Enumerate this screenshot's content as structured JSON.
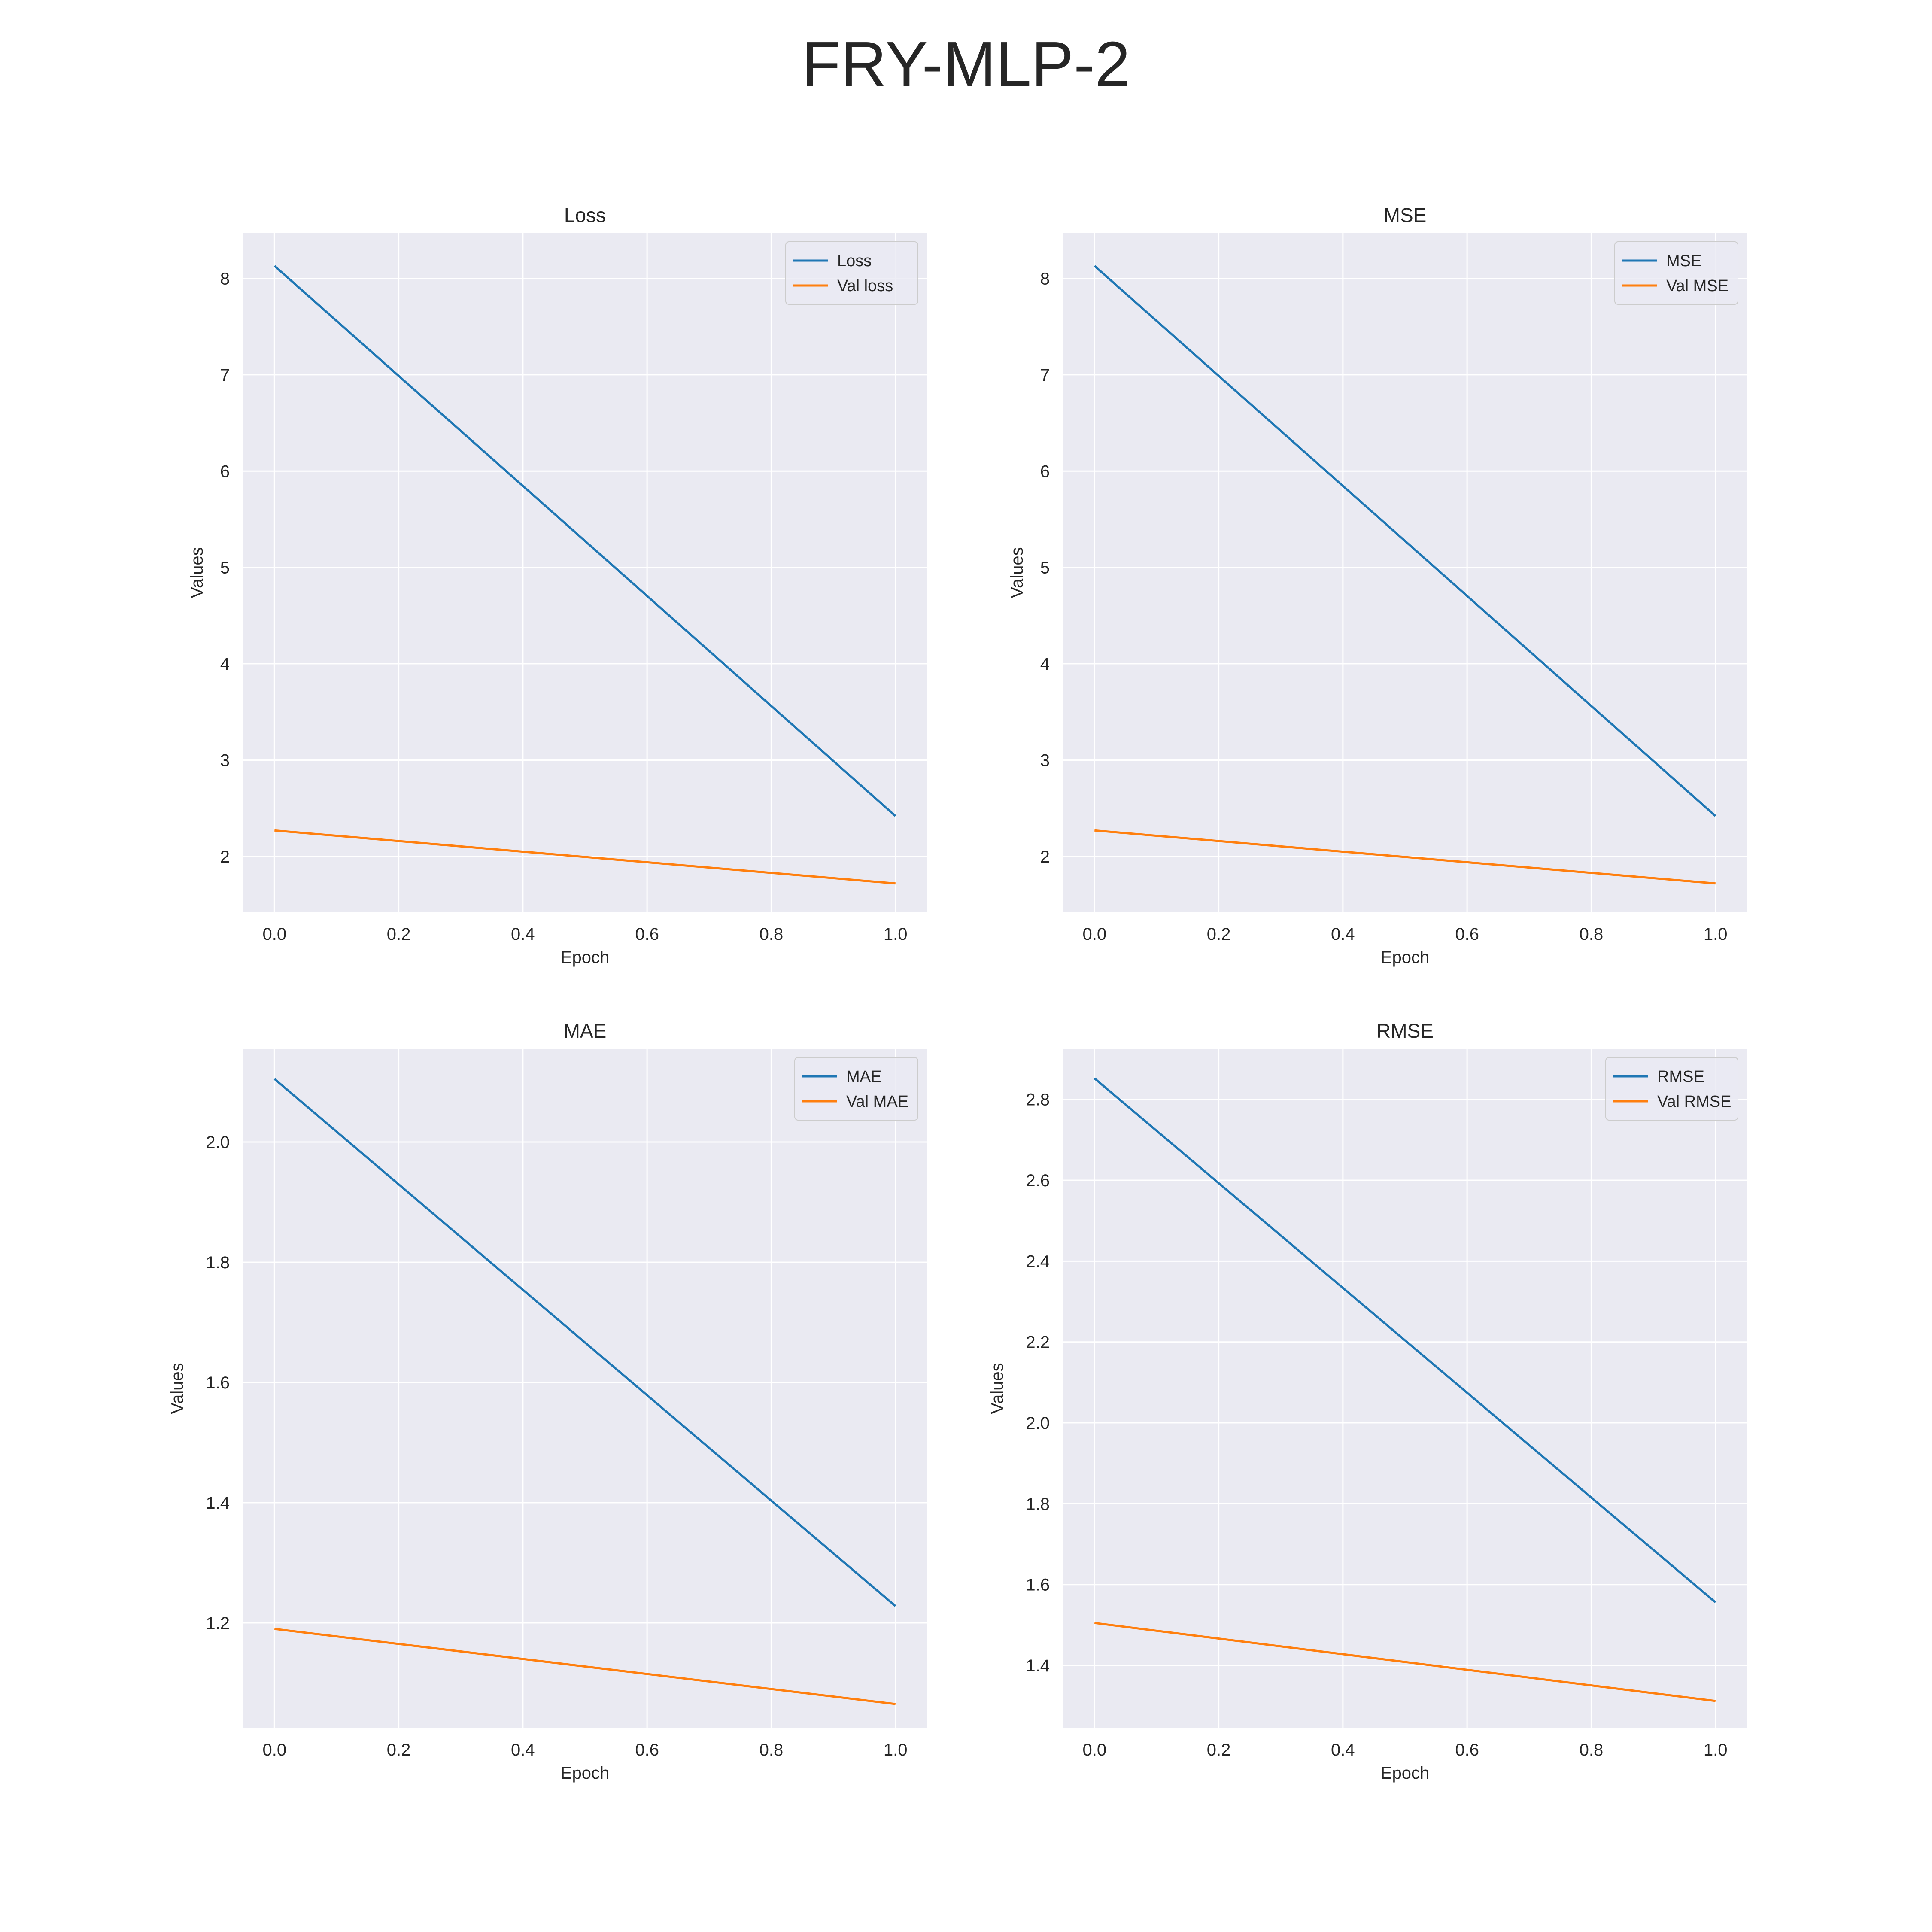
{
  "figure": {
    "title": "FRY-MLP-2"
  },
  "style": {
    "axes_facecolor": "#eaeaf2",
    "grid_color": "#ffffff",
    "series_colors": [
      "#1f77b4",
      "#ff7f0e"
    ]
  },
  "chart_data": [
    {
      "type": "line",
      "title": "Loss",
      "xlabel": "Epoch",
      "ylabel": "Values",
      "x": [
        0,
        1
      ],
      "xlim": [
        -0.05,
        1.05
      ],
      "ylim": [
        1.42,
        8.47
      ],
      "xticks": [
        0.0,
        0.2,
        0.4,
        0.6,
        0.8,
        1.0
      ],
      "xtick_labels": [
        "0.0",
        "0.2",
        "0.4",
        "0.6",
        "0.8",
        "1.0"
      ],
      "yticks": [
        2,
        3,
        4,
        5,
        6,
        7,
        8
      ],
      "ytick_labels": [
        "2",
        "3",
        "4",
        "5",
        "6",
        "7",
        "8"
      ],
      "grid": true,
      "legend_position": "top-right",
      "series": [
        {
          "name": "Loss",
          "values": [
            8.13,
            2.42
          ]
        },
        {
          "name": "Val loss",
          "values": [
            2.27,
            1.72
          ]
        }
      ]
    },
    {
      "type": "line",
      "title": "MSE",
      "xlabel": "Epoch",
      "ylabel": "Values",
      "x": [
        0,
        1
      ],
      "xlim": [
        -0.05,
        1.05
      ],
      "ylim": [
        1.42,
        8.47
      ],
      "xticks": [
        0.0,
        0.2,
        0.4,
        0.6,
        0.8,
        1.0
      ],
      "xtick_labels": [
        "0.0",
        "0.2",
        "0.4",
        "0.6",
        "0.8",
        "1.0"
      ],
      "yticks": [
        2,
        3,
        4,
        5,
        6,
        7,
        8
      ],
      "ytick_labels": [
        "2",
        "3",
        "4",
        "5",
        "6",
        "7",
        "8"
      ],
      "grid": true,
      "legend_position": "top-right",
      "series": [
        {
          "name": "MSE",
          "values": [
            8.13,
            2.42
          ]
        },
        {
          "name": "Val MSE",
          "values": [
            2.27,
            1.72
          ]
        }
      ]
    },
    {
      "type": "line",
      "title": "MAE",
      "xlabel": "Epoch",
      "ylabel": "Values",
      "x": [
        0,
        1
      ],
      "xlim": [
        -0.05,
        1.05
      ],
      "ylim": [
        1.025,
        2.155
      ],
      "xticks": [
        0.0,
        0.2,
        0.4,
        0.6,
        0.8,
        1.0
      ],
      "xtick_labels": [
        "0.0",
        "0.2",
        "0.4",
        "0.6",
        "0.8",
        "1.0"
      ],
      "yticks": [
        1.2,
        1.4,
        1.6,
        1.8,
        2.0
      ],
      "ytick_labels": [
        "1.2",
        "1.4",
        "1.6",
        "1.8",
        "2.0"
      ],
      "grid": true,
      "legend_position": "top-right",
      "series": [
        {
          "name": "MAE",
          "values": [
            2.105,
            1.228
          ]
        },
        {
          "name": "Val MAE",
          "values": [
            1.19,
            1.065
          ]
        }
      ]
    },
    {
      "type": "line",
      "title": "RMSE",
      "xlabel": "Epoch",
      "ylabel": "Values",
      "x": [
        0,
        1
      ],
      "xlim": [
        -0.05,
        1.05
      ],
      "ylim": [
        1.245,
        2.925
      ],
      "xticks": [
        0.0,
        0.2,
        0.4,
        0.6,
        0.8,
        1.0
      ],
      "xtick_labels": [
        "0.0",
        "0.2",
        "0.4",
        "0.6",
        "0.8",
        "1.0"
      ],
      "yticks": [
        1.4,
        1.6,
        1.8,
        2.0,
        2.2,
        2.4,
        2.6,
        2.8
      ],
      "ytick_labels": [
        "1.4",
        "1.6",
        "1.8",
        "2.0",
        "2.2",
        "2.4",
        "2.6",
        "2.8"
      ],
      "grid": true,
      "legend_position": "top-right",
      "series": [
        {
          "name": "RMSE",
          "values": [
            2.852,
            1.556
          ]
        },
        {
          "name": "Val RMSE",
          "values": [
            1.505,
            1.312
          ]
        }
      ]
    }
  ]
}
